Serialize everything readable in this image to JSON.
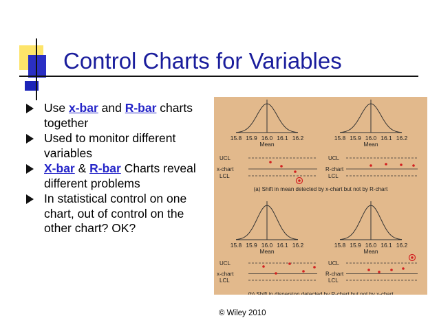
{
  "title": "Control Charts for Variables",
  "bullets": [
    {
      "parts": [
        {
          "text": "Use ",
          "link": false
        },
        {
          "text": "x-bar",
          "link": true
        },
        {
          "text": " and ",
          "link": false
        },
        {
          "text": "R-bar",
          "link": true
        },
        {
          "text": " charts together",
          "link": false
        }
      ]
    },
    {
      "parts": [
        {
          "text": "Used to monitor different variables",
          "link": false
        }
      ]
    },
    {
      "parts": [
        {
          "text": "X-bar",
          "link": true
        },
        {
          "text": " & ",
          "link": false
        },
        {
          "text": "R-bar",
          "link": true
        },
        {
          "text": " Charts reveal different problems",
          "link": false
        }
      ]
    },
    {
      "parts": [
        {
          "text": "In statistical control on one chart, out of control on the other chart? OK?",
          "link": false
        }
      ]
    }
  ],
  "figure": {
    "axis_ticks": [
      "15.8",
      "15.9",
      "16.0",
      "16.1",
      "16.2"
    ],
    "axis_label": "Mean",
    "ucl": "UCL",
    "lcl": "LCL",
    "xchart_label": "x-chart",
    "rchart_label": "R-chart",
    "caption_a": "(a) Shift in mean detected by x-chart but not by R-chart",
    "caption_b": "(b) Shift in dispersion detected by R-chart but not by x-chart"
  },
  "credit": "© Wiley 2010",
  "colors": {
    "title": "#1a1d9c",
    "link": "#2424c8",
    "figure_bg": "#e2b98c",
    "point": "#d22020"
  }
}
